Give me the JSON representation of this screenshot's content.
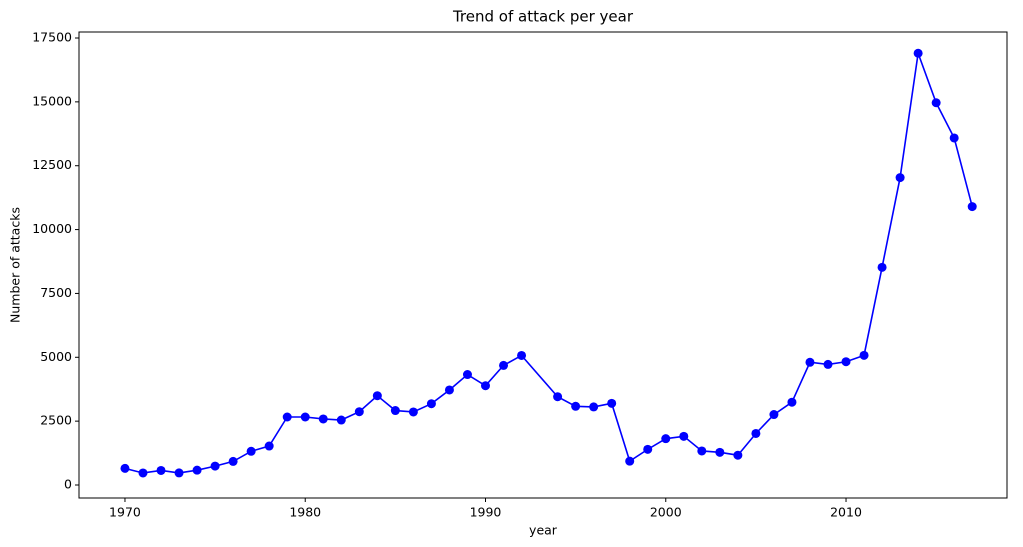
{
  "chart_data": {
    "type": "line",
    "title": "Trend of attack per year",
    "x_label": "year",
    "y_label": "Number of attacks",
    "x": [
      1970,
      1971,
      1972,
      1973,
      1974,
      1975,
      1976,
      1977,
      1978,
      1979,
      1980,
      1981,
      1982,
      1983,
      1984,
      1985,
      1986,
      1987,
      1988,
      1989,
      1990,
      1991,
      1992,
      1994,
      1995,
      1996,
      1997,
      1998,
      1999,
      2000,
      2001,
      2002,
      2003,
      2004,
      2005,
      2006,
      2007,
      2008,
      2009,
      2010,
      2011,
      2012,
      2013,
      2014,
      2015,
      2016,
      2017
    ],
    "series": [
      {
        "color": "#0000ff",
        "values": [
          651,
          471,
          568,
          473,
          581,
          740,
          923,
          1319,
          1526,
          2662,
          2662,
          2586,
          2544,
          2870,
          3495,
          2915,
          2860,
          3183,
          3721,
          4324,
          3887,
          4683,
          5071,
          3456,
          3081,
          3058,
          3197,
          934,
          1395,
          1814,
          1906,
          1333,
          1278,
          1166,
          2017,
          2758,
          3242,
          4805,
          4721,
          4826,
          5076,
          8522,
          12036,
          16903,
          14965,
          13587,
          10900
        ]
      }
    ],
    "xlim": [
      1967.45,
      2018.93
    ],
    "xticks": [
      1970,
      1980,
      1990,
      2000,
      2010
    ],
    "ylim": [
      -509,
      17735
    ],
    "yticks": [
      0,
      2500,
      5000,
      7500,
      10000,
      12500,
      15000,
      17500
    ],
    "marker": "circle"
  }
}
